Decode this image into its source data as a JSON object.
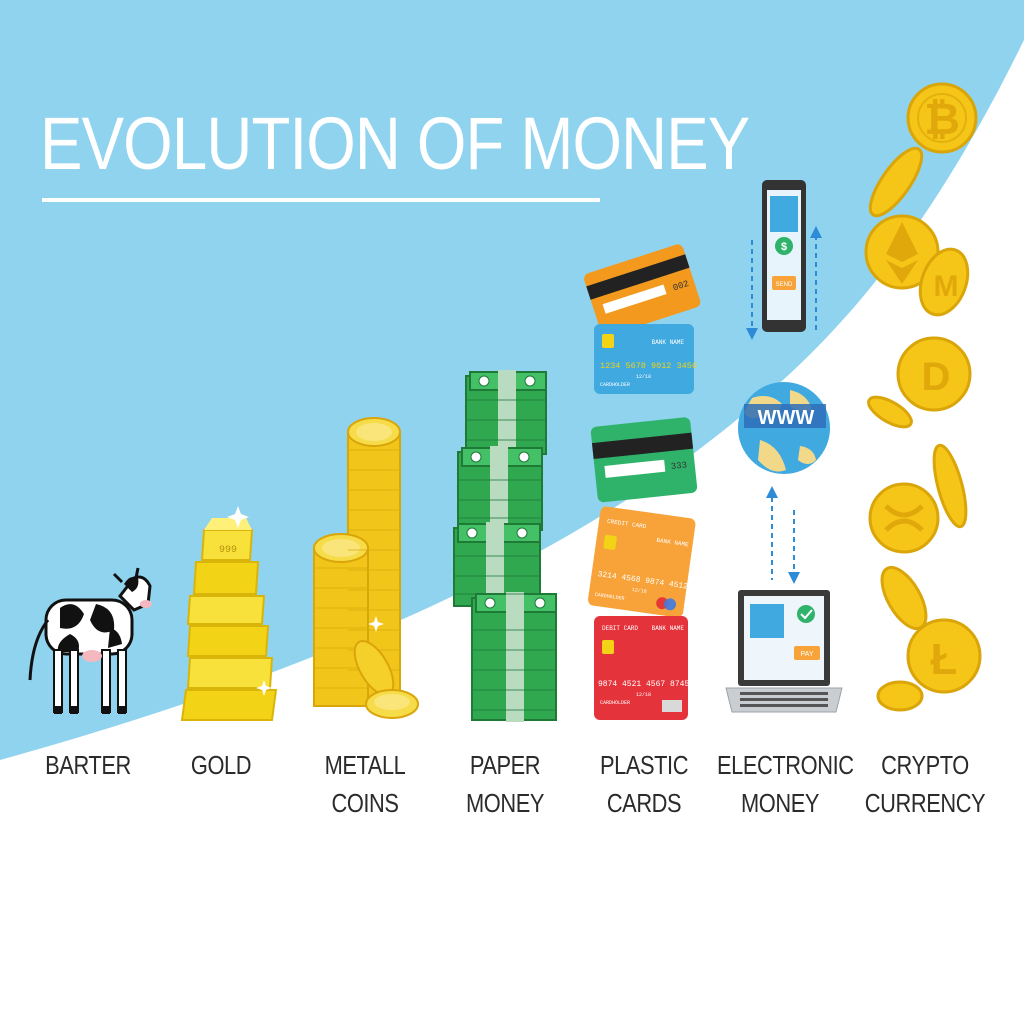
{
  "title": "EVOLUTION OF MONEY",
  "colors": {
    "sky": "#8fd3ee",
    "gold": "#f5c518",
    "gold_dark": "#d9a509",
    "green": "#2fa84f",
    "label": "#2b2b2b"
  },
  "stages": [
    {
      "id": "barter",
      "lines": [
        "BARTER"
      ],
      "icon": "cow-icon"
    },
    {
      "id": "gold",
      "lines": [
        "GOLD"
      ],
      "icon": "gold-bars-icon"
    },
    {
      "id": "metall-coins",
      "lines": [
        "METALL",
        "COINS"
      ],
      "icon": "coin-stacks-icon"
    },
    {
      "id": "paper-money",
      "lines": [
        "PAPER",
        "MONEY"
      ],
      "icon": "banknote-stacks-icon"
    },
    {
      "id": "plastic-cards",
      "lines": [
        "PLASTIC",
        "CARDS"
      ],
      "icon": "credit-cards-icon"
    },
    {
      "id": "electronic-money",
      "lines": [
        "ELECTRONIC",
        "MONEY"
      ],
      "icon": "phone-globe-laptop-icon"
    },
    {
      "id": "crypto-currency",
      "lines": [
        "CRYPTO",
        "CURRENCY"
      ],
      "icon": "crypto-coins-icon"
    }
  ],
  "illustration_text": {
    "gold_bar_stamp": "999",
    "card_orange_cvv": "002",
    "card_blue_bank": "BANK NAME",
    "card_blue_number": "1234 5678 9012 3456",
    "card_blue_expiry": "12/18",
    "card_blue_holder": "CARDHOLDER",
    "card_green_cvv": "333",
    "card_orange2_label": "CREDIT CARD",
    "card_orange2_bank": "BANK NAME",
    "card_orange2_number": "3214 4568 9874 4512",
    "card_orange2_expiry": "12/18",
    "card_orange2_holder": "CARDHOLDER",
    "card_red_label": "DEBIT CARD",
    "card_red_bank": "BANK NAME",
    "card_red_number": "9874 4521 4567 8745",
    "card_red_expiry": "12/18",
    "card_red_holder": "CARDHOLDER",
    "phone_button": "SEND",
    "globe_text": "WWW",
    "laptop_button": "PAY"
  }
}
